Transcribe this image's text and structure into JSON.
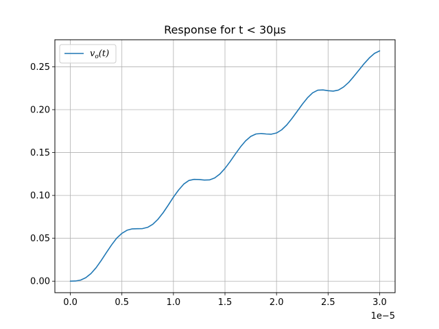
{
  "chart_data": {
    "type": "line",
    "title": "Response for t < 30μs",
    "xlabel": "",
    "ylabel": "",
    "x_offset_label": "1e−5",
    "xlim": [
      -0.15,
      3.15
    ],
    "ylim": [
      -0.0134,
      0.2815
    ],
    "grid": true,
    "legend_position": "top-left",
    "x_ticks": [
      0.0,
      0.5,
      1.0,
      1.5,
      2.0,
      2.5,
      3.0
    ],
    "x_tick_labels": [
      "0.0",
      "0.5",
      "1.0",
      "1.5",
      "2.0",
      "2.5",
      "3.0"
    ],
    "y_ticks": [
      0.0,
      0.05,
      0.1,
      0.15,
      0.2,
      0.25
    ],
    "y_tick_labels": [
      "0.00",
      "0.05",
      "0.10",
      "0.15",
      "0.20",
      "0.25"
    ],
    "series": [
      {
        "name": "v_o(t)",
        "legend_label": "v",
        "legend_sub": "o",
        "legend_suffix": "(t)",
        "color": "#1f77b4",
        "x": [
          0.0,
          0.05,
          0.1,
          0.15,
          0.2,
          0.25,
          0.3,
          0.35,
          0.4,
          0.45,
          0.5,
          0.55,
          0.6,
          0.65,
          0.7,
          0.75,
          0.8,
          0.85,
          0.9,
          0.95,
          1.0,
          1.05,
          1.1,
          1.15,
          1.2,
          1.25,
          1.3,
          1.35,
          1.4,
          1.45,
          1.5,
          1.55,
          1.6,
          1.65,
          1.7,
          1.75,
          1.8,
          1.85,
          1.9,
          1.95,
          2.0,
          2.05,
          2.1,
          2.15,
          2.2,
          2.25,
          2.3,
          2.35,
          2.4,
          2.45,
          2.5,
          2.55,
          2.6,
          2.65,
          2.7,
          2.75,
          2.8,
          2.85,
          2.9,
          2.95,
          3.0
        ],
        "y": [
          0.0,
          0.0002,
          0.0013,
          0.0041,
          0.0089,
          0.0157,
          0.0242,
          0.0334,
          0.0423,
          0.0502,
          0.0558,
          0.0594,
          0.061,
          0.0612,
          0.0613,
          0.0628,
          0.0664,
          0.0722,
          0.0798,
          0.0887,
          0.098,
          0.1063,
          0.1132,
          0.1174,
          0.1187,
          0.1185,
          0.1179,
          0.1181,
          0.1204,
          0.1249,
          0.1315,
          0.1395,
          0.1482,
          0.1565,
          0.1636,
          0.1688,
          0.1716,
          0.1722,
          0.1716,
          0.1714,
          0.1728,
          0.1765,
          0.1823,
          0.1898,
          0.198,
          0.2063,
          0.2138,
          0.2196,
          0.2227,
          0.223,
          0.2221,
          0.2216,
          0.2228,
          0.2264,
          0.2318,
          0.2388,
          0.2462,
          0.2537,
          0.2603,
          0.2656,
          0.2685
        ]
      }
    ]
  }
}
